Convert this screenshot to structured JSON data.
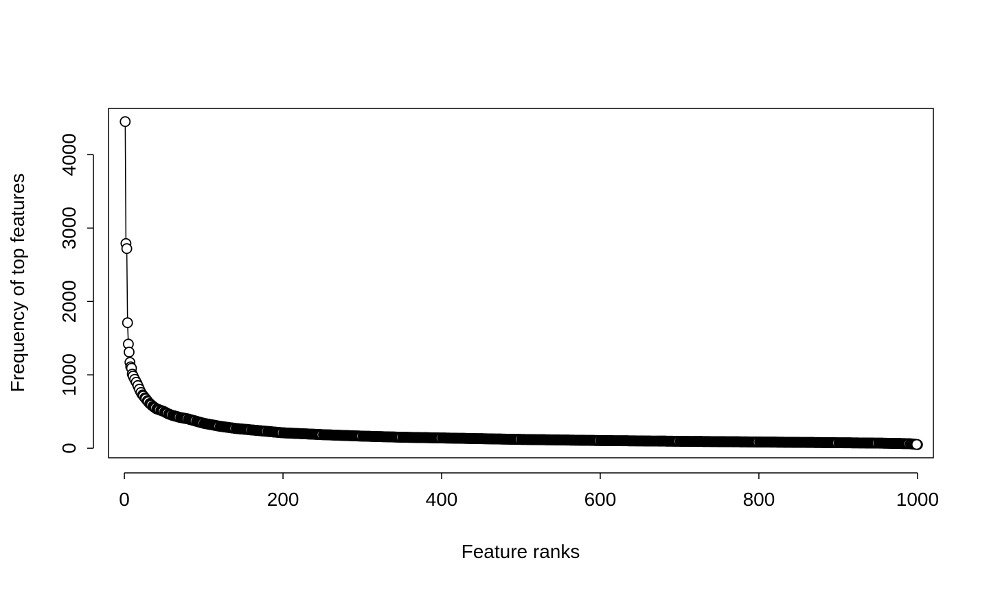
{
  "chart_data": {
    "type": "line",
    "title": "",
    "xlabel": "Feature ranks",
    "ylabel": "Frequency of top features",
    "xlim": [
      -20,
      1020
    ],
    "ylim": [
      -130,
      4630
    ],
    "xticks": [
      0,
      200,
      400,
      600,
      800,
      1000
    ],
    "yticks": [
      0,
      1000,
      2000,
      3000,
      4000
    ],
    "xtick_labels": [
      "0",
      "200",
      "400",
      "600",
      "800",
      "1000"
    ],
    "ytick_labels": [
      "0",
      "1000",
      "2000",
      "3000",
      "4000"
    ],
    "grid": false,
    "legend": "none",
    "series": [
      {
        "name": "Frequency of top features",
        "marker": "open-circle",
        "x": [
          1,
          2,
          3,
          4,
          5,
          6,
          7,
          8,
          9,
          10,
          12,
          14,
          16,
          18,
          20,
          22,
          25,
          28,
          31,
          35,
          40,
          45,
          50,
          55,
          60,
          70,
          80,
          90,
          100,
          120,
          140,
          160,
          180,
          200,
          250,
          300,
          350,
          400,
          500,
          600,
          700,
          800,
          900,
          950,
          990,
          1000
        ],
        "y": [
          4450,
          2790,
          2720,
          1710,
          1420,
          1310,
          1170,
          1110,
          1090,
          1010,
          960,
          920,
          880,
          830,
          780,
          740,
          700,
          660,
          620,
          580,
          540,
          520,
          500,
          470,
          450,
          420,
          400,
          370,
          340,
          300,
          270,
          250,
          230,
          210,
          185,
          165,
          150,
          140,
          120,
          105,
          95,
          85,
          75,
          70,
          62,
          50
        ]
      }
    ]
  }
}
